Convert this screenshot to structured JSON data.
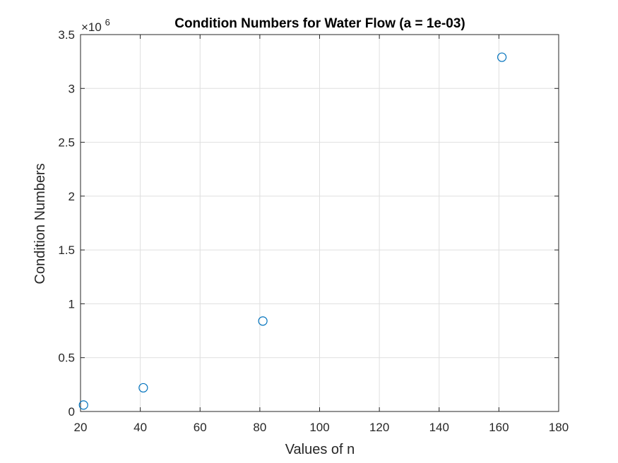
{
  "chart_data": {
    "type": "scatter",
    "title": "Condition Numbers for Water Flow (a = 1e-03)",
    "xlabel": "Values of n",
    "ylabel": "Condition Numbers",
    "xlim": [
      20,
      180
    ],
    "ylim": [
      0,
      3.5
    ],
    "xticks": [
      20,
      40,
      60,
      80,
      100,
      120,
      140,
      160,
      180
    ],
    "xtick_labels": [
      "20",
      "40",
      "60",
      "80",
      "100",
      "120",
      "140",
      "160",
      "180"
    ],
    "yticks": [
      0,
      0.5,
      1,
      1.5,
      2,
      2.5,
      3,
      3.5
    ],
    "ytick_labels": [
      "0",
      "0.5",
      "1",
      "1.5",
      "2",
      "2.5",
      "3",
      "3.5"
    ],
    "y_multiplier": {
      "base": "×10",
      "exponent": "6"
    },
    "grid": true,
    "marker": "open-circle",
    "marker_color": "#0072bd",
    "points": [
      {
        "x": 21,
        "y": 0.06
      },
      {
        "x": 41,
        "y": 0.22
      },
      {
        "x": 81,
        "y": 0.84
      },
      {
        "x": 161,
        "y": 3.29
      }
    ]
  }
}
